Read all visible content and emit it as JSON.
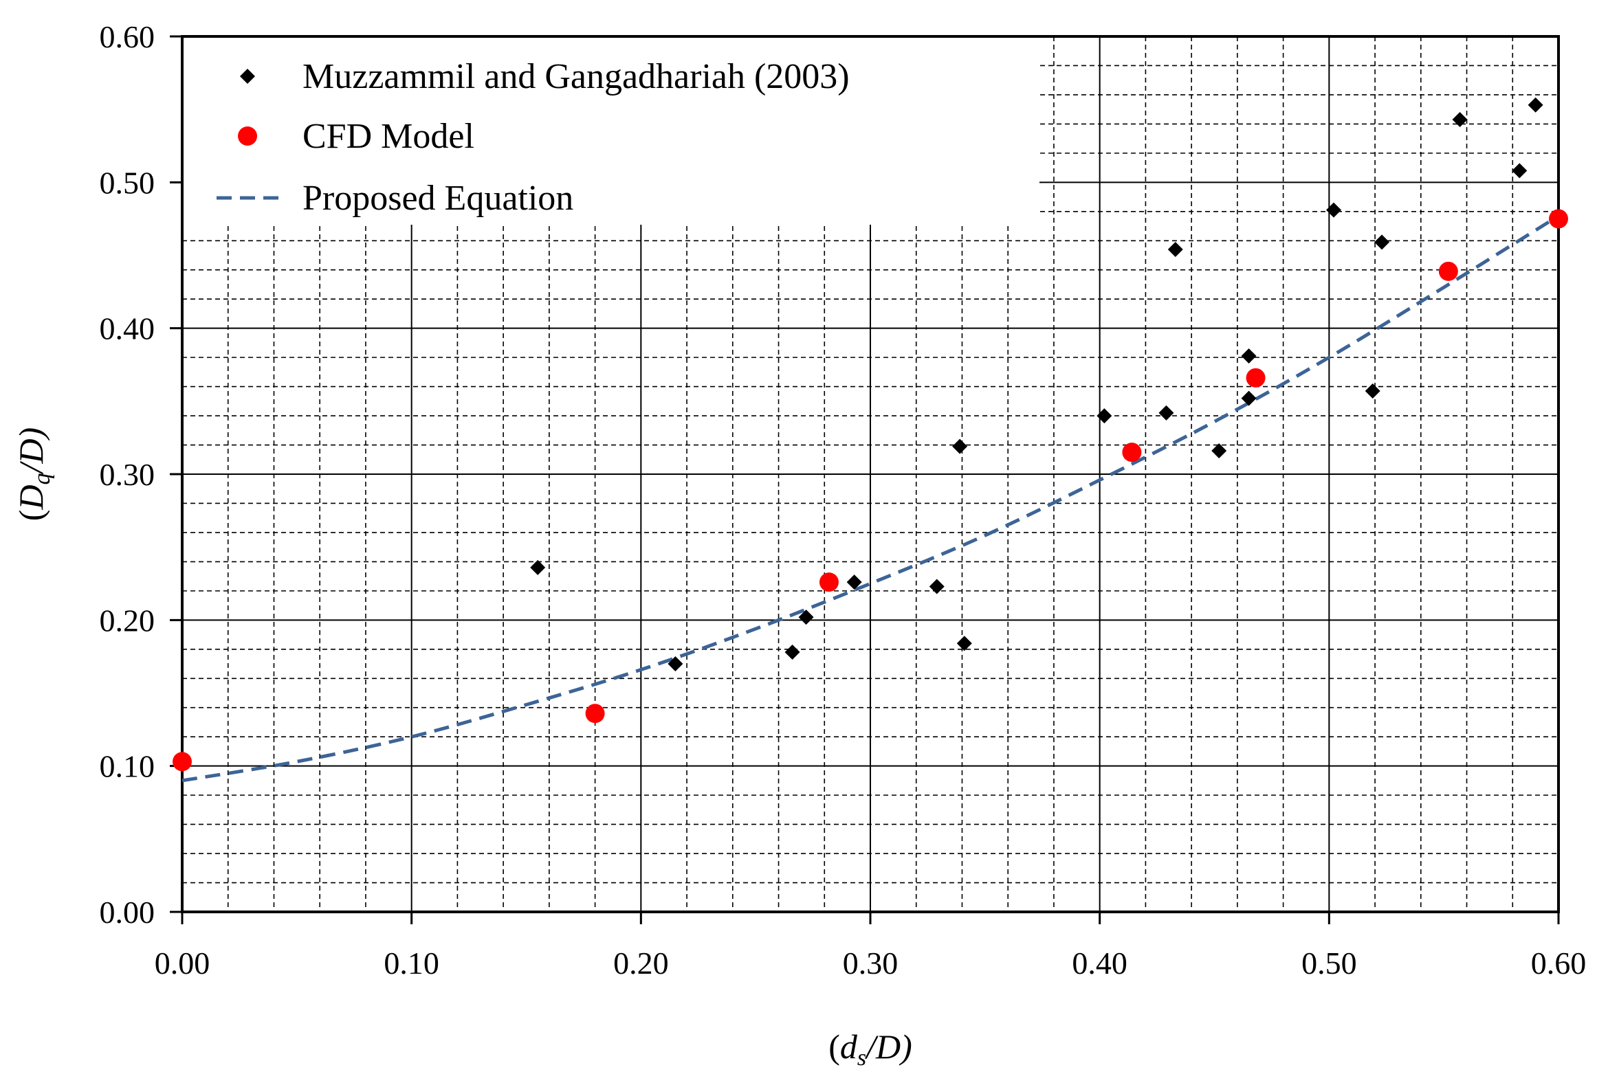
{
  "chart_data": {
    "type": "scatter",
    "title": "",
    "xlabel": "(ds/D)",
    "ylabel": "(Dq/D)",
    "xlabel_parts": {
      "open": "(",
      "var": "d",
      "sub": "s",
      "rest": "/D)"
    },
    "ylabel_parts": {
      "open": "(",
      "var": "D",
      "sub": "q",
      "rest": "/D)"
    },
    "xlim": [
      0,
      0.6
    ],
    "ylim": [
      0,
      0.6
    ],
    "x_ticks": [
      "0.00",
      "0.10",
      "0.20",
      "0.30",
      "0.40",
      "0.50",
      "0.60"
    ],
    "y_ticks": [
      "0.00",
      "0.10",
      "0.20",
      "0.30",
      "0.40",
      "0.50",
      "0.60"
    ],
    "grid": true,
    "legend_position": "top-left",
    "series": [
      {
        "name": "Muzzammil and Gangadhariah (2003)",
        "kind": "scatter",
        "marker": "diamond",
        "color": "#000000",
        "points": [
          [
            0.155,
            0.236
          ],
          [
            0.215,
            0.17
          ],
          [
            0.266,
            0.178
          ],
          [
            0.272,
            0.202
          ],
          [
            0.293,
            0.226
          ],
          [
            0.329,
            0.223
          ],
          [
            0.339,
            0.319
          ],
          [
            0.341,
            0.184
          ],
          [
            0.402,
            0.34
          ],
          [
            0.429,
            0.342
          ],
          [
            0.433,
            0.454
          ],
          [
            0.452,
            0.316
          ],
          [
            0.465,
            0.352
          ],
          [
            0.465,
            0.381
          ],
          [
            0.502,
            0.481
          ],
          [
            0.519,
            0.357
          ],
          [
            0.523,
            0.459
          ],
          [
            0.557,
            0.543
          ],
          [
            0.583,
            0.508
          ],
          [
            0.59,
            0.553
          ]
        ]
      },
      {
        "name": "CFD Model",
        "kind": "scatter",
        "marker": "circle",
        "color": "#ff0000",
        "points": [
          [
            0.0,
            0.103
          ],
          [
            0.18,
            0.136
          ],
          [
            0.282,
            0.226
          ],
          [
            0.414,
            0.315
          ],
          [
            0.468,
            0.366
          ],
          [
            0.552,
            0.439
          ],
          [
            0.6,
            0.475
          ]
        ]
      },
      {
        "name": "Proposed Equation",
        "kind": "line",
        "style": "dashed",
        "color": "#3d6496",
        "points": [
          [
            0.0,
            0.09
          ],
          [
            0.05,
            0.103
          ],
          [
            0.1,
            0.12
          ],
          [
            0.15,
            0.142
          ],
          [
            0.2,
            0.166
          ],
          [
            0.25,
            0.194
          ],
          [
            0.3,
            0.225
          ],
          [
            0.35,
            0.258
          ],
          [
            0.4,
            0.296
          ],
          [
            0.45,
            0.336
          ],
          [
            0.5,
            0.38
          ],
          [
            0.55,
            0.428
          ],
          [
            0.6,
            0.477
          ]
        ]
      }
    ]
  }
}
